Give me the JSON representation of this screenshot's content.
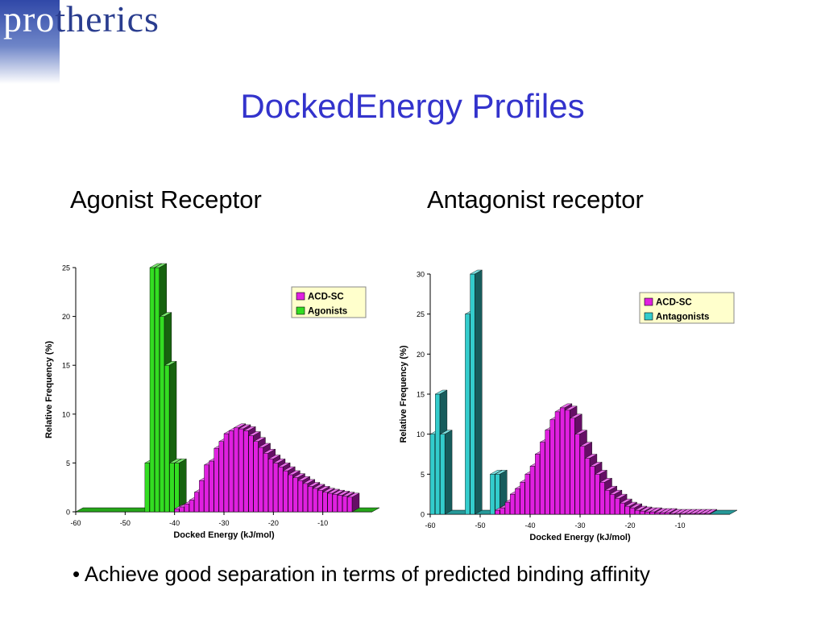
{
  "logo": {
    "part1": "pro",
    "part2": "therics"
  },
  "slide_title": "DockedEnergy Profiles",
  "left_heading": "Agonist Receptor",
  "right_heading": "Antagonist receptor",
  "bullet": "• Achieve good separation in terms of predicted binding affinity",
  "chart_data": [
    {
      "type": "bar",
      "title": "",
      "xlabel": "Docked Energy (kJ/mol)",
      "ylabel": "Relative Frequency (%)",
      "ylim": [
        0,
        25
      ],
      "yticks": [
        0,
        5,
        10,
        15,
        20,
        25
      ],
      "xlim": [
        -60,
        0
      ],
      "xticks": [
        -60,
        -50,
        -40,
        -30,
        -20,
        -10
      ],
      "legend_position": "top-right",
      "legend": [
        "ACD-SC",
        "Agonists"
      ],
      "colors": {
        "ACD-SC": "#e020e0",
        "Agonists": "#33dd22"
      },
      "x": [
        -60,
        -59,
        -58,
        -57,
        -56,
        -55,
        -54,
        -53,
        -52,
        -51,
        -50,
        -49,
        -48,
        -47,
        -46,
        -45,
        -44,
        -43,
        -42,
        -41,
        -40,
        -39,
        -38,
        -37,
        -36,
        -35,
        -34,
        -33,
        -32,
        -31,
        -30,
        -29,
        -28,
        -27,
        -26,
        -25,
        -24,
        -23,
        -22,
        -21,
        -20,
        -19,
        -18,
        -17,
        -16,
        -15,
        -14,
        -13,
        -12,
        -11,
        -10,
        -9,
        -8,
        -7,
        -6,
        -5,
        -4,
        -3,
        -2,
        -1
      ],
      "series": [
        {
          "name": "ACD-SC",
          "values": [
            0,
            0,
            0,
            0,
            0,
            0,
            0,
            0,
            0,
            0,
            0,
            0,
            0,
            0,
            0,
            0,
            0,
            0,
            0,
            0,
            0.3,
            0.5,
            0.8,
            1.2,
            2.0,
            3.2,
            4.8,
            5.2,
            6.5,
            7.2,
            8.0,
            8.3,
            8.6,
            8.5,
            8.3,
            7.8,
            7.2,
            6.6,
            6.0,
            5.4,
            5.0,
            4.6,
            4.2,
            3.8,
            3.5,
            3.2,
            2.9,
            2.6,
            2.4,
            2.2,
            2.0,
            1.9,
            1.8,
            1.7,
            1.6,
            1.5,
            0,
            0,
            0,
            0
          ]
        },
        {
          "name": "Agonists",
          "values": [
            0,
            0,
            0,
            0,
            0,
            0,
            0,
            0,
            0,
            0,
            0,
            0,
            0,
            0,
            5,
            25,
            25,
            20,
            15,
            5,
            5,
            0,
            0,
            0,
            0,
            0,
            0,
            0,
            0,
            0,
            0,
            0,
            0,
            0,
            0,
            0,
            0,
            0,
            0,
            0,
            0,
            0,
            0,
            0,
            0,
            0,
            0,
            0,
            0,
            0,
            0,
            0,
            0,
            0,
            0,
            0,
            0,
            0,
            0,
            0
          ]
        }
      ]
    },
    {
      "type": "bar",
      "title": "",
      "xlabel": "Docked Energy (kJ/mol)",
      "ylabel": "Relative Frequency (%)",
      "ylim": [
        0,
        30
      ],
      "yticks": [
        0,
        5,
        10,
        15,
        20,
        25,
        30
      ],
      "xlim": [
        -60,
        0
      ],
      "xticks": [
        -60,
        -50,
        -40,
        -30,
        -20,
        -10
      ],
      "legend_position": "top-right",
      "legend": [
        "ACD-SC",
        "Antagonists"
      ],
      "colors": {
        "ACD-SC": "#e020e0",
        "Antagonists": "#33cccc"
      },
      "x": [
        -60,
        -59,
        -58,
        -57,
        -56,
        -55,
        -54,
        -53,
        -52,
        -51,
        -50,
        -49,
        -48,
        -47,
        -46,
        -45,
        -44,
        -43,
        -42,
        -41,
        -40,
        -39,
        -38,
        -37,
        -36,
        -35,
        -34,
        -33,
        -32,
        -31,
        -30,
        -29,
        -28,
        -27,
        -26,
        -25,
        -24,
        -23,
        -22,
        -21,
        -20,
        -19,
        -18,
        -17,
        -16,
        -15,
        -14,
        -13,
        -12,
        -11,
        -10,
        -9,
        -8,
        -7,
        -6,
        -5,
        -4,
        -3,
        -2,
        -1
      ],
      "series": [
        {
          "name": "ACD-SC",
          "values": [
            0,
            0,
            0,
            0,
            0,
            0,
            0,
            0,
            0,
            0,
            0,
            0,
            0,
            0.5,
            0.8,
            1.5,
            2.5,
            3.2,
            4.0,
            5.0,
            6.0,
            7.5,
            9.0,
            10.5,
            11.8,
            12.8,
            13.3,
            13.0,
            12.0,
            10.0,
            8.5,
            7.0,
            6.0,
            5.0,
            4.0,
            3.0,
            2.5,
            2.0,
            1.4,
            1.0,
            0.8,
            0.5,
            0.4,
            0.3,
            0.3,
            0.2,
            0.2,
            0.2,
            0.1,
            0.1,
            0.1,
            0.1,
            0.1,
            0.1,
            0.1,
            0.1,
            0,
            0,
            0,
            0
          ]
        },
        {
          "name": "Antagonists",
          "values": [
            10,
            15,
            10,
            0,
            0,
            0,
            0,
            25,
            30,
            0,
            0,
            0,
            5,
            5,
            0,
            0,
            0,
            0,
            0,
            0,
            0,
            0,
            0,
            0,
            0,
            0,
            0,
            0,
            0,
            0,
            0,
            0,
            0,
            0,
            0,
            0,
            0,
            0,
            0,
            0,
            0,
            0,
            0,
            0,
            0,
            0,
            0,
            0,
            0,
            0,
            0,
            0,
            0,
            0,
            0,
            0,
            0,
            0,
            0,
            0
          ]
        }
      ]
    }
  ]
}
